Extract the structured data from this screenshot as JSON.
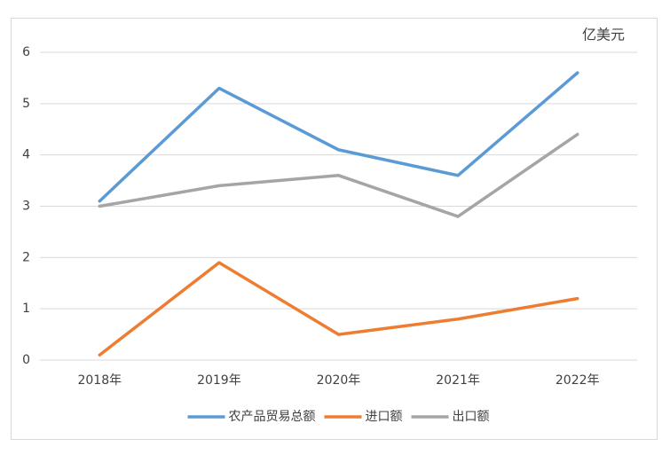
{
  "chart_data": {
    "type": "line",
    "unit_label": "亿美元",
    "categories": [
      "2018年",
      "2019年",
      "2020年",
      "2021年",
      "2022年"
    ],
    "series": [
      {
        "name": "农产品贸易总额",
        "color": "#5b9bd5",
        "values": [
          3.1,
          5.3,
          4.1,
          3.6,
          5.6
        ]
      },
      {
        "name": "进口额",
        "color": "#ed7d31",
        "values": [
          0.1,
          1.9,
          0.5,
          0.8,
          1.2
        ]
      },
      {
        "name": "出口额",
        "color": "#a5a5a5",
        "values": [
          3.0,
          3.4,
          3.6,
          2.8,
          4.4
        ]
      }
    ],
    "ylim": [
      0,
      6
    ],
    "yticks": [
      0,
      1,
      2,
      3,
      4,
      5,
      6
    ],
    "grid": true,
    "legend": "bottom"
  }
}
